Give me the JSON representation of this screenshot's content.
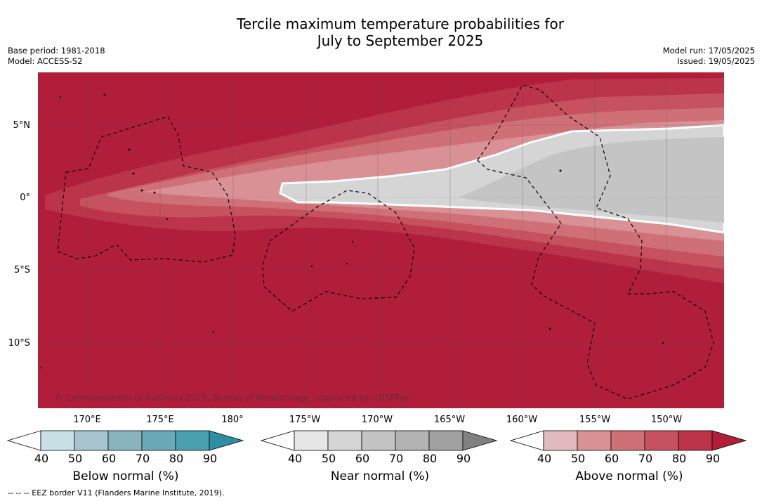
{
  "title": {
    "line1": "Tercile maximum temperature probabilities for",
    "line2": "July to September 2025"
  },
  "meta_left": {
    "base_period": "Base period: 1981-2018",
    "model": "Model: ACCESS-S2"
  },
  "meta_right": {
    "model_run": "Model run: 17/05/2025",
    "issued": "Issued: 19/05/2025"
  },
  "map": {
    "lat_labels": [
      "5°N",
      "0°",
      "5°S",
      "10°S"
    ],
    "lon_labels": [
      "170°E",
      "175°E",
      "180°",
      "175°W",
      "170°W",
      "165°W",
      "160°W",
      "155°W",
      "150°W"
    ],
    "copyright": "© Commonwealth of Australia 2025, Bureau of Meteorology, supported by COSPPac",
    "colors": {
      "above_90": "#b11e3a",
      "above_80": "#bc3449",
      "above_70": "#c6525f",
      "above_60": "#cf7077",
      "above_50": "#d99196",
      "near_50": "#d5d5d5",
      "near_60": "#c4c4c4"
    }
  },
  "colorbars": [
    {
      "name": "Below normal (%)",
      "ticks": [
        "40",
        "50",
        "60",
        "70",
        "80",
        "90"
      ],
      "colors": [
        "#ffffff",
        "#c9e0e6",
        "#a6c5cc",
        "#88b4be",
        "#6aa9b7",
        "#4a9fb0",
        "#2e8fa4"
      ]
    },
    {
      "name": "Near normal (%)",
      "ticks": [
        "40",
        "50",
        "60",
        "70",
        "80",
        "90"
      ],
      "colors": [
        "#ffffff",
        "#e6e6e6",
        "#d5d5d5",
        "#c4c4c4",
        "#b3b3b3",
        "#a1a1a1",
        "#808080"
      ]
    },
    {
      "name": "Above normal (%)",
      "ticks": [
        "40",
        "50",
        "60",
        "70",
        "80",
        "90"
      ],
      "colors": [
        "#ffffff",
        "#e2b9be",
        "#d99196",
        "#cf7077",
        "#c6525f",
        "#bc3449",
        "#b11e3a"
      ]
    }
  ],
  "footnote": "--  --  -- EEZ border V11 (Flanders Marine Institute, 2019)."
}
